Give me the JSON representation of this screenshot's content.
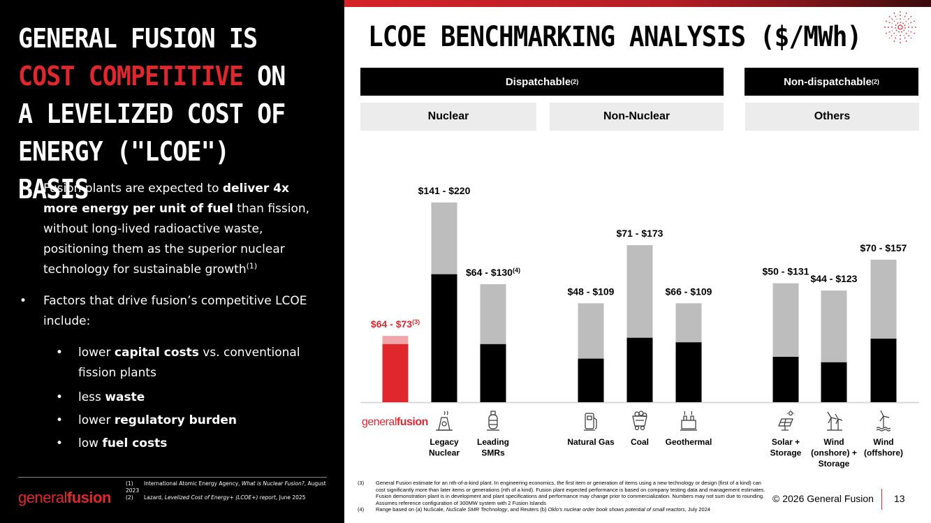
{
  "left": {
    "headline": {
      "p1": "GENERAL FUSION IS ",
      "p2": "COST COMPETITIVE",
      "p3": " ON A LEVELIZED COST OF ENERGY (\"LCOE\") BASIS"
    },
    "bullet1": {
      "a": "Fusion plants are expected to ",
      "b": "deliver 4x more energy per unit of fuel",
      "c": " than fission, without long-lived radioactive waste, positioning them as the superior nuclear technology for sustainable growth",
      "sup": "(1)"
    },
    "bullet2": "Factors that drive fusion’s competitive LCOE include:",
    "subs": [
      {
        "a": "lower ",
        "b": "capital costs",
        "c": " vs. conventional fission plants"
      },
      {
        "a": "less ",
        "b": "waste",
        "c": ""
      },
      {
        "a": "lower ",
        "b": "regulatory burden",
        "c": ""
      },
      {
        "a": "low ",
        "b": "fuel costs",
        "c": ""
      }
    ],
    "footnotes": [
      {
        "n": "(1)",
        "a": "International Atomic Energy Agency, ",
        "i": "What is Nuclear Fusion?",
        "b": ", August 2023"
      },
      {
        "n": "(2)",
        "a": "Lazard, ",
        "i": "Levelized Cost of Energy+ (LCOE+) report",
        "b": ", June 2025"
      }
    ],
    "logo": {
      "a": "general",
      "b": "fusion"
    }
  },
  "title": "LCOE BENCHMARKING ANALYSIS ($/MWh)",
  "categories": {
    "dispatchable": "Dispatchable",
    "non_dispatchable": "Non-dispatchable",
    "sup": "(2)",
    "nuclear": "Nuclear",
    "non_nuclear": "Non-Nuclear",
    "others": "Others"
  },
  "chart_data": {
    "type": "bar",
    "title": "LCOE BENCHMARKING ANALYSIS ($/MWh)",
    "ylabel": "$/MWh",
    "ylim": [
      0,
      230
    ],
    "series_note": "floating range bars: low value (solid) to high value",
    "groups": [
      "Nuclear",
      "Non-Nuclear",
      "Others"
    ],
    "bars": [
      {
        "name": "General Fusion",
        "group": "Nuclear",
        "low": 64,
        "high": 73,
        "label": "$64 - $73",
        "label_sup": "(3)",
        "highlight": true
      },
      {
        "name": "Legacy Nuclear",
        "group": "Nuclear",
        "low": 141,
        "high": 220,
        "label": "$141 - $220",
        "label_sup": ""
      },
      {
        "name": "Leading SMRs",
        "group": "Nuclear",
        "low": 64,
        "high": 130,
        "label": "$64 - $130",
        "label_sup": "(4)"
      },
      {
        "name": "Natural Gas",
        "group": "Non-Nuclear",
        "low": 48,
        "high": 109,
        "label": "$48 - $109",
        "label_sup": ""
      },
      {
        "name": "Coal",
        "group": "Non-Nuclear",
        "low": 71,
        "high": 173,
        "label": "$71 - $173",
        "label_sup": ""
      },
      {
        "name": "Geothermal",
        "group": "Non-Nuclear",
        "low": 66,
        "high": 109,
        "label": "$66 - $109",
        "label_sup": ""
      },
      {
        "name": "Solar + Storage",
        "group": "Others",
        "low": 50,
        "high": 131,
        "label": "$50 - $131",
        "label_sup": ""
      },
      {
        "name": "Wind (onshore) + Storage",
        "group": "Others",
        "low": 44,
        "high": 123,
        "label": "$44 - $123",
        "label_sup": ""
      },
      {
        "name": "Wind (offshore)",
        "group": "Others",
        "low": 70,
        "high": 157,
        "label": "$70 - $157",
        "label_sup": ""
      }
    ],
    "xlabels": [
      {
        "bar": "General Fusion",
        "lines": []
      },
      {
        "bar": "Legacy Nuclear",
        "lines": [
          "Legacy",
          "Nuclear"
        ]
      },
      {
        "bar": "Leading SMRs",
        "lines": [
          "Leading",
          "SMRs"
        ]
      },
      {
        "bar": "Natural Gas",
        "lines": [
          "Natural Gas"
        ]
      },
      {
        "bar": "Coal",
        "lines": [
          "Coal"
        ]
      },
      {
        "bar": "Geothermal",
        "lines": [
          "Geothermal"
        ]
      },
      {
        "bar": "Solar + Storage",
        "lines": [
          "Solar +",
          "Storage"
        ]
      },
      {
        "bar": "Wind (onshore) + Storage",
        "lines": [
          "Wind",
          "(onshore) +",
          "Storage"
        ]
      },
      {
        "bar": "Wind (offshore)",
        "lines": [
          "Wind",
          "(offshore)"
        ]
      }
    ],
    "gf_logo": {
      "a": "general",
      "b": "fusion"
    }
  },
  "right_footnotes": [
    {
      "n": "(3)",
      "t": "General Fusion estimate for an nth-of-a-kind plant. In engineering economics, the first item or generation of items using a new technology or design (first of a kind) can cost significantly more than later items or generations (nth of a kind). Fusion plant expected performance is based on company testing data and management estimates. Fusion demonstration plant is in development and plant specifications and performance may change prior to commercialization. Numbers may not sum due to rounding. Assumes reference configuration of 300MW system with 2 Fusion Islands"
    },
    {
      "n": "(4)",
      "a": "Range based on (a) NuScale, ",
      "i1": "NuScale SMR Technology",
      "b": ", and Reuters (b) ",
      "i2": "Oklo’s nuclear order book shows potential of small reactors",
      "c": ", July 2024"
    }
  ],
  "copyright": "© 2026 General Fusion",
  "page_number": "13",
  "colors": {
    "accent": "#e0272e",
    "light_accent": "#f2a5a8",
    "bar_high": "#bdbdbd",
    "bar_low": "#000000"
  }
}
